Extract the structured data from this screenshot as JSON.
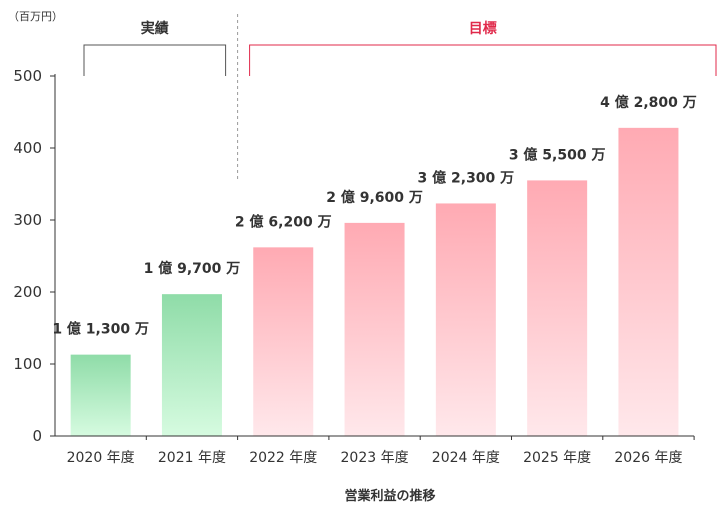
{
  "chart_data": {
    "type": "bar",
    "title": "",
    "xlabel": "営業利益の推移",
    "ylabel": "",
    "unit_label": "（百万円）",
    "categories": [
      "2020 年度",
      "2021 年度",
      "2022 年度",
      "2023 年度",
      "2024 年度",
      "2025 年度",
      "2026 年度"
    ],
    "values": [
      113,
      197,
      262,
      296,
      323,
      355,
      428
    ],
    "data_labels": [
      "1 億 1,300 万",
      "1 億 9,700 万",
      "2 億 6,200 万",
      "2 億 9,600 万",
      "3 億 2,300 万",
      "3 億 5,500 万",
      "4 億 2,800 万"
    ],
    "ylim": [
      0,
      500
    ],
    "yticks": [
      0,
      100,
      200,
      300,
      400,
      500
    ],
    "grid": false,
    "groups": [
      {
        "label": "実績",
        "start": 0,
        "end": 1,
        "color": "#333333"
      },
      {
        "label": "目標",
        "start": 2,
        "end": 6,
        "color": "#e0294a"
      }
    ],
    "colors": {
      "actual_top": "#8fdca8",
      "actual_bottom": "#d6fbe0",
      "target_top": "#ffaab3",
      "target_bottom": "#ffe8eb",
      "axis": "#333333",
      "divider": "#999999",
      "target_bracket": "#e0294a",
      "actual_bracket": "#555555"
    }
  }
}
